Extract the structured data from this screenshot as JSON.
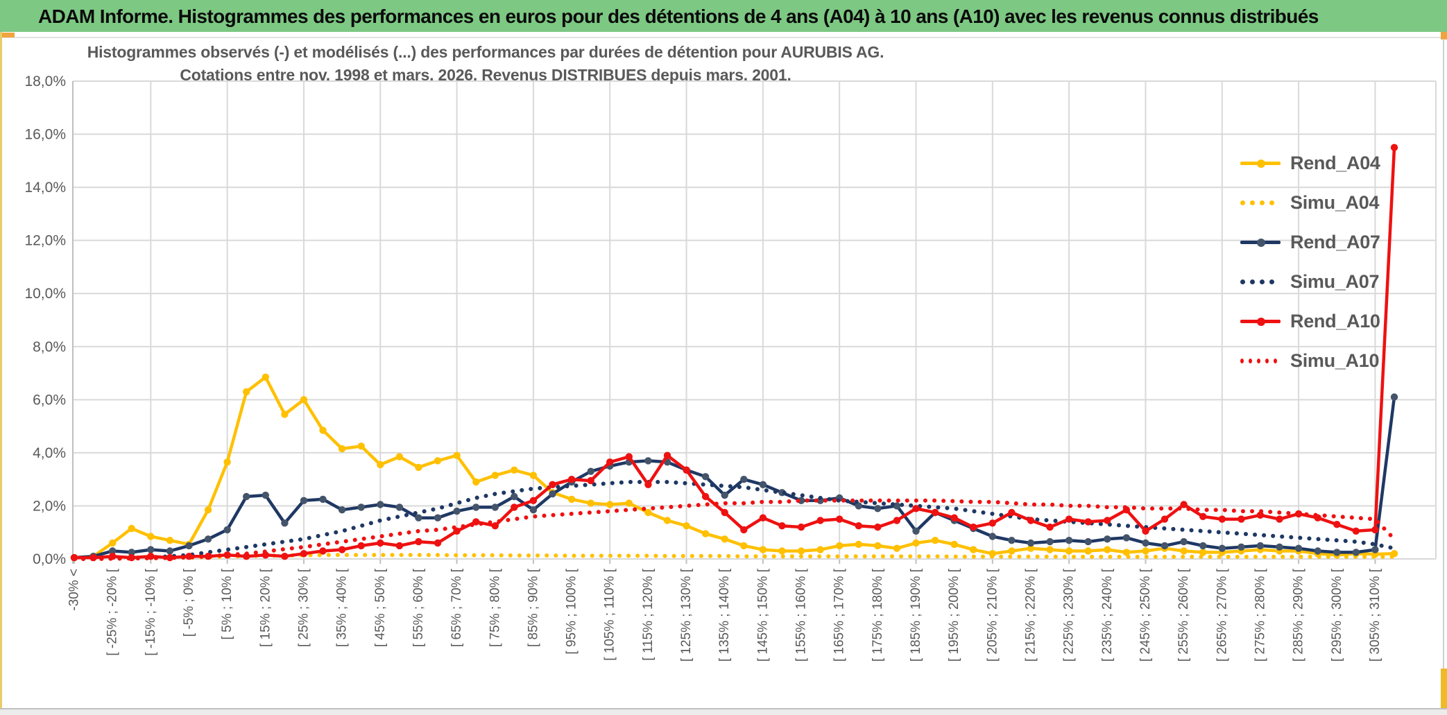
{
  "header": {
    "title": "ADAM Informe. Histogrammes des performances en euros pour des détentions de 4 ans (A04) à 10 ans (A10) avec les revenus connus distribués",
    "bg_color": "#7DC883",
    "accent_color": "#F0A43C"
  },
  "chart_data": {
    "type": "line",
    "title_line1": "Histogrammes observés (-) et modélisés (...) des performances par durées de détention pour AURUBIS AG.",
    "title_line2": "Cotations entre nov. 1998 et mars. 2026. Revenus DISTRIBUES depuis mars. 2001.",
    "n_bins": 70,
    "bin_width_pct": 5,
    "x_tick_every": 2,
    "x_tick_labels": [
      "-30% <",
      "[ -25% ; -20% [",
      "[ -15% ; -10% [",
      "[ -5% ; 0% [",
      "[ 5% ; 10% [",
      "[ 15% ; 20% [",
      "[ 25% ; 30% [",
      "[ 35% ; 40% [",
      "[ 45% ; 50% [",
      "[ 55% ; 60% [",
      "[ 65% ; 70% [",
      "[ 75% ; 80% [",
      "[ 85% ; 90% [",
      "[ 95% ; 100% [",
      "[ 105% ; 110% [",
      "[ 115% ; 120% [",
      "[ 125% ; 130% [",
      "[ 135% ; 140% [",
      "[ 145% ; 150% [",
      "[ 155% ; 160% [",
      "[ 165% ; 170% [",
      "[ 175% ; 180% [",
      "[ 185% ; 190% [",
      "[ 195% ; 200% [",
      "[ 205% ; 210% [",
      "[ 215% ; 220% [",
      "[ 225% ; 230% [",
      "[ 235% ; 240% [",
      "[ 245% ; 250% [",
      "[ 255% ; 260% [",
      "[ 265% ; 270% [",
      "[ 275% ; 280% [",
      "[ 285% ; 290% [",
      "[ 295% ; 300% [",
      "[ 305% ; 310% ["
    ],
    "y_tick_labels": [
      "0,0%",
      "2,0%",
      "4,0%",
      "6,0%",
      "8,0%",
      "10,0%",
      "12,0%",
      "14,0%",
      "16,0%",
      "18,0%"
    ],
    "y_tick_step_pct": 2,
    "ylim": [
      0,
      18
    ],
    "grid": true,
    "legend_position": "inside-right",
    "colors": {
      "grid": "#D9D9D9",
      "axis_text": "#595959",
      "title_text": "#595959"
    },
    "series": [
      {
        "name": "Rend_A04",
        "style": "solid",
        "color": "#FFC000",
        "marker_color": "#FFC000",
        "values": [
          0.05,
          0.1,
          0.6,
          1.15,
          0.85,
          0.7,
          0.55,
          1.85,
          3.65,
          6.3,
          6.85,
          5.45,
          6.0,
          4.85,
          4.15,
          4.25,
          3.55,
          3.85,
          3.45,
          3.7,
          3.9,
          2.9,
          3.15,
          3.35,
          3.15,
          2.5,
          2.25,
          2.1,
          2.05,
          2.1,
          1.75,
          1.45,
          1.25,
          0.95,
          0.75,
          0.5,
          0.35,
          0.3,
          0.3,
          0.35,
          0.5,
          0.55,
          0.5,
          0.4,
          0.6,
          0.7,
          0.55,
          0.35,
          0.2,
          0.3,
          0.4,
          0.35,
          0.3,
          0.3,
          0.35,
          0.25,
          0.3,
          0.4,
          0.3,
          0.25,
          0.25,
          0.3,
          0.35,
          0.3,
          0.3,
          0.2,
          0.15,
          0.2,
          0.18,
          0.2
        ]
      },
      {
        "name": "Simu_A04",
        "style": "dotted",
        "color": "#FFC000",
        "values": [
          0.0,
          0.0,
          0.01,
          0.02,
          0.03,
          0.04,
          0.05,
          0.07,
          0.09,
          0.11,
          0.12,
          0.13,
          0.14,
          0.15,
          0.15,
          0.15,
          0.15,
          0.15,
          0.15,
          0.15,
          0.14,
          0.14,
          0.14,
          0.13,
          0.13,
          0.13,
          0.12,
          0.12,
          0.12,
          0.12,
          0.12,
          0.11,
          0.11,
          0.11,
          0.11,
          0.1,
          0.1,
          0.1,
          0.1,
          0.1,
          0.1,
          0.1,
          0.1,
          0.1,
          0.1,
          0.1,
          0.09,
          0.09,
          0.09,
          0.09,
          0.09,
          0.09,
          0.08,
          0.08,
          0.08,
          0.08,
          0.08,
          0.08,
          0.08,
          0.08,
          0.08,
          0.08,
          0.08,
          0.08,
          0.08,
          0.08,
          0.08,
          0.08,
          0.08,
          0.08
        ]
      },
      {
        "name": "Rend_A07",
        "style": "solid",
        "color": "#1F3864",
        "marker_color": "#44546A",
        "values": [
          0.05,
          0.1,
          0.3,
          0.25,
          0.35,
          0.3,
          0.5,
          0.75,
          1.1,
          2.35,
          2.4,
          1.35,
          2.2,
          2.25,
          1.85,
          1.95,
          2.05,
          1.95,
          1.55,
          1.55,
          1.8,
          1.95,
          1.95,
          2.35,
          1.85,
          2.45,
          2.9,
          3.3,
          3.5,
          3.65,
          3.7,
          3.65,
          3.35,
          3.1,
          2.4,
          3.0,
          2.8,
          2.5,
          2.2,
          2.2,
          2.3,
          2.0,
          1.9,
          2.0,
          1.05,
          1.75,
          1.45,
          1.15,
          0.85,
          0.7,
          0.6,
          0.65,
          0.7,
          0.65,
          0.75,
          0.8,
          0.6,
          0.5,
          0.65,
          0.5,
          0.4,
          0.45,
          0.5,
          0.45,
          0.4,
          0.3,
          0.25,
          0.25,
          0.35,
          6.1
        ]
      },
      {
        "name": "Simu_A07",
        "style": "dotted",
        "color": "#1F3864",
        "values": [
          0.0,
          0.01,
          0.02,
          0.04,
          0.06,
          0.1,
          0.15,
          0.25,
          0.35,
          0.45,
          0.55,
          0.65,
          0.75,
          0.9,
          1.05,
          1.25,
          1.45,
          1.6,
          1.75,
          1.9,
          2.1,
          2.3,
          2.45,
          2.55,
          2.65,
          2.7,
          2.75,
          2.8,
          2.85,
          2.9,
          2.9,
          2.9,
          2.85,
          2.8,
          2.75,
          2.7,
          2.6,
          2.5,
          2.4,
          2.3,
          2.2,
          2.15,
          2.1,
          2.05,
          2.0,
          1.95,
          1.9,
          1.8,
          1.7,
          1.6,
          1.5,
          1.45,
          1.4,
          1.35,
          1.3,
          1.25,
          1.2,
          1.15,
          1.1,
          1.05,
          1.0,
          0.95,
          0.9,
          0.85,
          0.8,
          0.75,
          0.7,
          0.65,
          0.55,
          0.4
        ]
      },
      {
        "name": "Rend_A10",
        "style": "solid",
        "color": "#EE1111",
        "marker_color": "#EE1111",
        "values": [
          0.05,
          0.05,
          0.1,
          0.05,
          0.1,
          0.05,
          0.1,
          0.1,
          0.15,
          0.1,
          0.15,
          0.1,
          0.2,
          0.3,
          0.35,
          0.5,
          0.6,
          0.5,
          0.65,
          0.6,
          1.05,
          1.4,
          1.25,
          1.95,
          2.2,
          2.8,
          3.0,
          2.95,
          3.65,
          3.85,
          2.8,
          3.9,
          3.35,
          2.35,
          1.75,
          1.1,
          1.55,
          1.25,
          1.2,
          1.45,
          1.5,
          1.25,
          1.2,
          1.45,
          1.9,
          1.75,
          1.55,
          1.2,
          1.35,
          1.75,
          1.45,
          1.2,
          1.5,
          1.4,
          1.45,
          1.85,
          1.05,
          1.5,
          2.05,
          1.6,
          1.5,
          1.5,
          1.65,
          1.5,
          1.7,
          1.55,
          1.3,
          1.05,
          1.1,
          15.5
        ]
      },
      {
        "name": "Simu_A10",
        "style": "dotted",
        "color": "#EE1111",
        "values": [
          0.0,
          0.0,
          0.01,
          0.02,
          0.03,
          0.04,
          0.06,
          0.1,
          0.15,
          0.2,
          0.28,
          0.37,
          0.45,
          0.55,
          0.65,
          0.75,
          0.85,
          0.95,
          1.05,
          1.1,
          1.2,
          1.3,
          1.4,
          1.5,
          1.6,
          1.65,
          1.7,
          1.75,
          1.8,
          1.85,
          1.9,
          1.95,
          2.0,
          2.05,
          2.1,
          2.1,
          2.15,
          2.15,
          2.2,
          2.2,
          2.2,
          2.2,
          2.2,
          2.2,
          2.2,
          2.2,
          2.18,
          2.15,
          2.15,
          2.1,
          2.05,
          2.05,
          2.0,
          2.0,
          1.95,
          1.95,
          1.9,
          1.9,
          1.9,
          1.85,
          1.85,
          1.8,
          1.8,
          1.75,
          1.7,
          1.65,
          1.6,
          1.55,
          1.5,
          0.75
        ]
      }
    ]
  }
}
